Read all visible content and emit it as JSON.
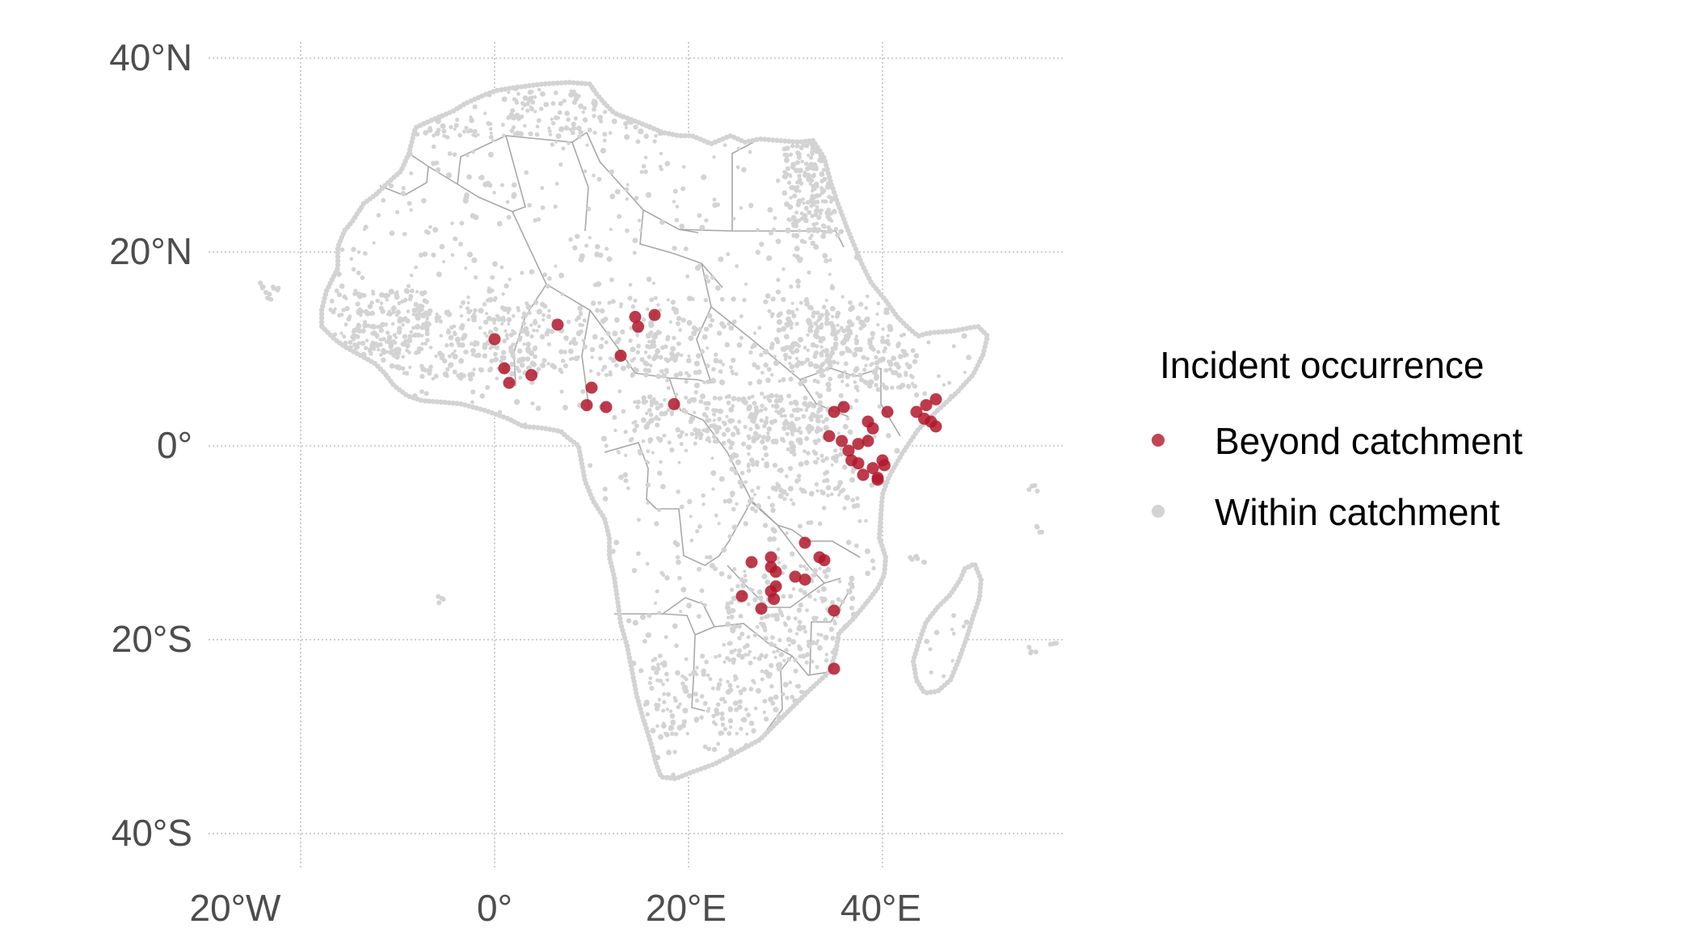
{
  "axes": {
    "x_ticks": [
      "20°W",
      "0°",
      "20°E",
      "40°E"
    ],
    "y_ticks": [
      "40°N",
      "20°N",
      "0°",
      "20°S",
      "40°S"
    ]
  },
  "legend": {
    "title": "Incident occurrence",
    "items": [
      {
        "label": "Beyond catchment",
        "color": "#b2182b"
      },
      {
        "label": "Within catchment",
        "color": "#d3d3d3"
      }
    ]
  },
  "chart_data": {
    "type": "scatter",
    "x_range_deg": [
      -30,
      59
    ],
    "y_range_deg": [
      -43,
      43
    ],
    "x_tick_values": [
      -20,
      0,
      20,
      40
    ],
    "y_tick_values": [
      40,
      20,
      0,
      -20,
      -40
    ],
    "grid": true,
    "legend_position": "right",
    "series": [
      {
        "name": "Beyond catchment",
        "color": "#b2182b",
        "points": [
          [
            0,
            11
          ],
          [
            1.5,
            6.5
          ],
          [
            1,
            8
          ],
          [
            3.8,
            7.3
          ],
          [
            6.5,
            12.5
          ],
          [
            10,
            6
          ],
          [
            9.5,
            4.2
          ],
          [
            11.5,
            4
          ],
          [
            13,
            9.3
          ],
          [
            14.5,
            13.3
          ],
          [
            14.8,
            12.3
          ],
          [
            16.5,
            13.5
          ],
          [
            18.5,
            4.3
          ],
          [
            35,
            3.5
          ],
          [
            36,
            4
          ],
          [
            34.5,
            1
          ],
          [
            35.8,
            0.5
          ],
          [
            36.5,
            -0.5
          ],
          [
            37.5,
            0.2
          ],
          [
            36.8,
            -1.5
          ],
          [
            37.5,
            -1.8
          ],
          [
            38.5,
            0.5
          ],
          [
            39,
            1.8
          ],
          [
            38.5,
            2.5
          ],
          [
            40.5,
            3.5
          ],
          [
            39.5,
            -3.3
          ],
          [
            39.5,
            -3.5
          ],
          [
            40,
            -1.5
          ],
          [
            40.2,
            -2
          ],
          [
            43.5,
            3.5
          ],
          [
            44.5,
            4.2
          ],
          [
            45.5,
            4.8
          ],
          [
            45,
            2.5
          ],
          [
            45.5,
            2
          ],
          [
            44.3,
            2.8
          ],
          [
            38,
            -3
          ],
          [
            39,
            -2.3
          ],
          [
            26.5,
            -12
          ],
          [
            28.5,
            -12.5
          ],
          [
            29,
            -13
          ],
          [
            28.5,
            -15
          ],
          [
            29,
            -14.5
          ],
          [
            28.8,
            -15.8
          ],
          [
            27.5,
            -16.8
          ],
          [
            25.5,
            -15.5
          ],
          [
            31,
            -13.5
          ],
          [
            32,
            -13.8
          ],
          [
            34,
            -11.8
          ],
          [
            33.5,
            -11.5
          ],
          [
            35,
            -17
          ],
          [
            35,
            -23
          ],
          [
            32,
            -10
          ],
          [
            28.5,
            -11.5
          ]
        ]
      },
      {
        "name": "Within catchment",
        "color": "#d3d3d3"
      }
    ]
  }
}
